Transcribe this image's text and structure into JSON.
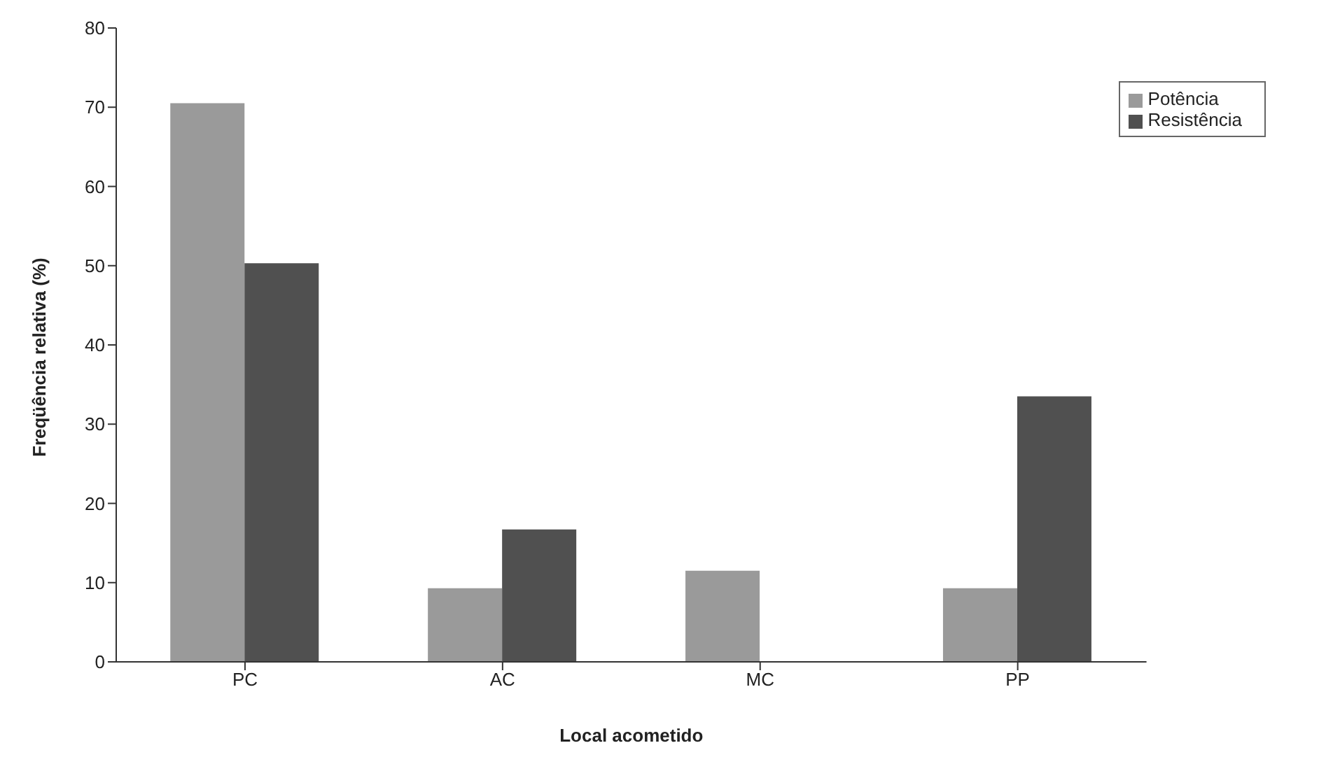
{
  "chart_data": {
    "type": "bar",
    "xlabel": "Local acometido",
    "ylabel": "Freqüência relativa (%)",
    "categories": [
      "PC",
      "AC",
      "MC",
      "PP"
    ],
    "series": [
      {
        "name": "Potência",
        "color": "#9a9a9a",
        "values": [
          70.5,
          9.3,
          11.5,
          9.3
        ]
      },
      {
        "name": "Resistência",
        "color": "#505050",
        "values": [
          50.3,
          16.7,
          0,
          33.5
        ]
      }
    ],
    "ylim": [
      0,
      80
    ],
    "yticks": [
      0,
      10,
      20,
      30,
      40,
      50,
      60,
      70,
      80
    ],
    "grid": false,
    "legend": "top right"
  }
}
